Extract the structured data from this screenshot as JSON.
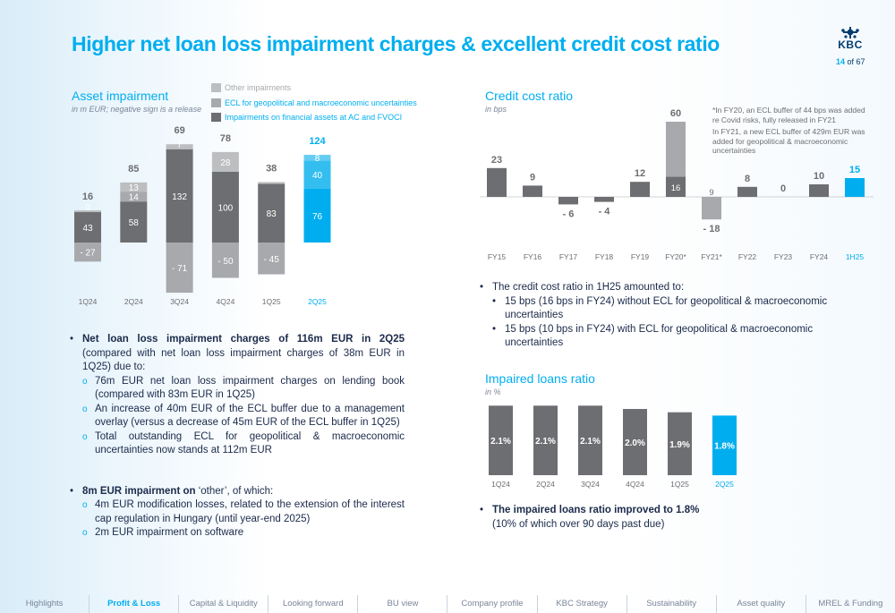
{
  "header": {
    "title": "Higher net loan loss impairment charges & excellent credit cost ratio",
    "logo_text": "KBC",
    "page_current": "14",
    "page_of": "of 67"
  },
  "asset_impairment": {
    "title": "Asset impairment",
    "subtitle": "in m EUR; negative sign is a release",
    "legend": [
      "Other impairments",
      "ECL for geopolitical and macroeconomic uncertainties",
      "Impairments on financial assets at AC and FVOCI"
    ]
  },
  "credit_cost": {
    "title": "Credit cost ratio",
    "subtitle": "in bps",
    "note1": "*In FY20, an ECL buffer of 44 bps was added re Covid risks, fully released in FY21",
    "note2": "In FY21, a new ECL buffer of 429m EUR was added for geopolitical & macroeconomic uncertainties"
  },
  "impaired_loans": {
    "title": "Impaired loans ratio",
    "subtitle": "in %"
  },
  "chart_data": [
    {
      "type": "bar",
      "name": "asset-impairment",
      "categories": [
        "1Q24",
        "2Q24",
        "3Q24",
        "4Q24",
        "1Q25",
        "2Q25"
      ],
      "totals": [
        16,
        85,
        69,
        78,
        38,
        124
      ],
      "series": [
        {
          "name": "Impairments on financial assets at AC and FVOCI",
          "values": [
            43,
            58,
            132,
            100,
            83,
            76
          ]
        },
        {
          "name": "ECL for geopolitical and macroeconomic uncertainties",
          "values": [
            -27,
            14,
            -71,
            -50,
            -45,
            40
          ]
        },
        {
          "name": "Other impairments",
          "values": [
            0,
            13,
            7,
            28,
            0,
            8
          ]
        }
      ],
      "colors": {
        "base": "#6d6e71",
        "ecl": "#a7a9ac",
        "other": "#bcbec0",
        "highlight": "#00aeef",
        "highlight_mid": "#33beef",
        "highlight_top": "#66cdf2"
      }
    },
    {
      "type": "bar",
      "name": "credit-cost-ratio",
      "categories": [
        "FY15",
        "FY16",
        "FY17",
        "FY18",
        "FY19",
        "FY20*",
        "FY21*",
        "FY22",
        "FY23",
        "FY24",
        "1H25"
      ],
      "values": [
        23,
        9,
        -6,
        -4,
        12,
        60,
        -18,
        8,
        0,
        10,
        15
      ],
      "inner_labels": {
        "FY20*": "16",
        "FY21*": "9"
      }
    },
    {
      "type": "bar",
      "name": "impaired-loans-ratio",
      "categories": [
        "1Q24",
        "2Q24",
        "3Q24",
        "4Q24",
        "1Q25",
        "2Q25"
      ],
      "values": [
        2.1,
        2.1,
        2.1,
        2.0,
        1.9,
        1.8
      ],
      "labels": [
        "2.1%",
        "2.1%",
        "2.1%",
        "2.0%",
        "1.9%",
        "1.8%"
      ]
    }
  ],
  "bullets_left": {
    "b1_bold": "Net loan loss impairment charges of 116m EUR in 2Q25",
    "b1_rest": " (compared with net loan loss impairment charges of 38m EUR in 1Q25) due to:",
    "b1_sub": [
      "76m EUR net loan loss impairment charges on lending book (compared with 83m EUR in 1Q25)",
      "An increase of 40m EUR of the ECL buffer due to a management overlay (versus a decrease of 45m EUR of the ECL buffer in 1Q25)",
      "Total outstanding ECL for geopolitical & macroeconomic uncertainties now stands at 112m EUR"
    ],
    "b2_bold": "8m EUR impairment on ",
    "b2_quote": "‘other’,",
    "b2_rest": " of which:",
    "b2_sub": [
      "4m EUR modification losses, related to the extension of the interest cap regulation in Hungary (until year-end 2025)",
      "2m EUR impairment on software"
    ]
  },
  "bullets_credit": {
    "main": "The credit cost ratio in 1H25 amounted to:",
    "sub": [
      "15 bps (16 bps in FY24) without ECL for geopolitical & macroeconomic uncertainties",
      "15 bps (10 bps in FY24) with ECL for geopolitical & macroeconomic uncertainties"
    ]
  },
  "bullets_impaired": {
    "main_bold": "The impaired loans ratio improved to 1.8%",
    "detail": "(10% of which over 90 days past due)"
  },
  "footer": {
    "items": [
      "Highlights",
      "Profit & Loss",
      "Capital & Liquidity",
      "Looking forward",
      "BU view",
      "Company profile",
      "KBC Strategy",
      "Sustainability",
      "Asset quality",
      "MREL & Funding"
    ],
    "active": "Profit & Loss"
  }
}
